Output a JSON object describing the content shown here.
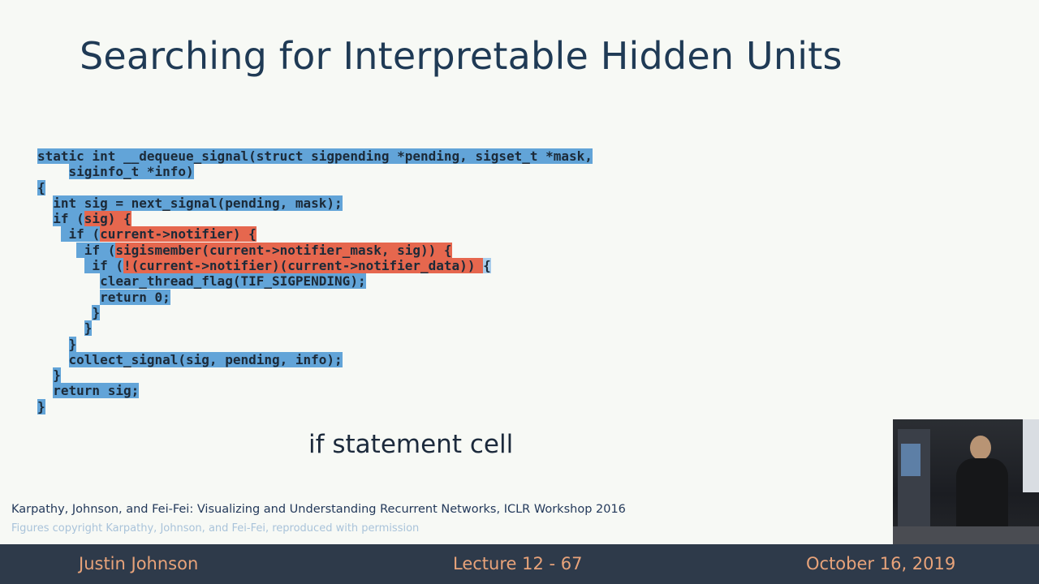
{
  "slide": {
    "title": "Searching for Interpretable Hidden Units",
    "caption": "if statement cell",
    "citation": "Karpathy, Johnson, and Fei-Fei: Visualizing and Understanding Recurrent Networks, ICLR Workshop 2016",
    "copyright": "Figures copyright Karpathy, Johnson, and Fei-Fei, reproduced with permission"
  },
  "colors": {
    "inactive": "#62a4d8",
    "active": "#e6674e",
    "title": "#1f3a55",
    "footer_bg": "#2e3a4a",
    "footer_text": "#e8a37a"
  },
  "code": {
    "lines": [
      [
        {
          "t": "static int __dequeue_signal(struct sigpending *pending, sigset_t *mask,",
          "c": "b"
        }
      ],
      [
        {
          "t": "    ",
          "c": "w"
        },
        {
          "t": "siginfo_t *info)",
          "c": "b"
        }
      ],
      [
        {
          "t": "{",
          "c": "b"
        }
      ],
      [
        {
          "t": "  ",
          "c": "w"
        },
        {
          "t": "int sig = next_signal(pending, mask);",
          "c": "b"
        }
      ],
      [
        {
          "t": "  ",
          "c": "w"
        },
        {
          "t": "if (",
          "c": "b"
        },
        {
          "t": "sig) {",
          "c": "r"
        }
      ],
      [
        {
          "t": "   ",
          "c": "w"
        },
        {
          "t": " if (",
          "c": "b"
        },
        {
          "t": "current->notifier) {",
          "c": "r"
        }
      ],
      [
        {
          "t": "     ",
          "c": "w"
        },
        {
          "t": " if (",
          "c": "b"
        },
        {
          "t": "sigismember(current->notifier_mask, sig)) {",
          "c": "r"
        }
      ],
      [
        {
          "t": "      ",
          "c": "w"
        },
        {
          "t": " if (",
          "c": "b"
        },
        {
          "t": "!(current->notifier)(current->notifier_data)) ",
          "c": "r"
        },
        {
          "t": "{",
          "c": "lb"
        }
      ],
      [
        {
          "t": "        ",
          "c": "w"
        },
        {
          "t": "clear_thread_flag(TIF_SIGPENDING);",
          "c": "b"
        }
      ],
      [
        {
          "t": "        ",
          "c": "w"
        },
        {
          "t": "return 0;",
          "c": "b"
        }
      ],
      [
        {
          "t": "       ",
          "c": "w"
        },
        {
          "t": "}",
          "c": "b"
        }
      ],
      [
        {
          "t": "      ",
          "c": "w"
        },
        {
          "t": "}",
          "c": "b"
        }
      ],
      [
        {
          "t": "    ",
          "c": "w"
        },
        {
          "t": "}",
          "c": "b"
        }
      ],
      [
        {
          "t": "    ",
          "c": "w"
        },
        {
          "t": "collect_signal(sig, pending, info);",
          "c": "b"
        }
      ],
      [
        {
          "t": "  ",
          "c": "w"
        },
        {
          "t": "}",
          "c": "b"
        }
      ],
      [
        {
          "t": "  ",
          "c": "w"
        },
        {
          "t": "return sig;",
          "c": "b"
        }
      ],
      [
        {
          "t": "}",
          "c": "b"
        }
      ]
    ]
  },
  "footer": {
    "author": "Justin Johnson",
    "lecture": "Lecture 12 - 67",
    "date": "October 16, 2019"
  }
}
